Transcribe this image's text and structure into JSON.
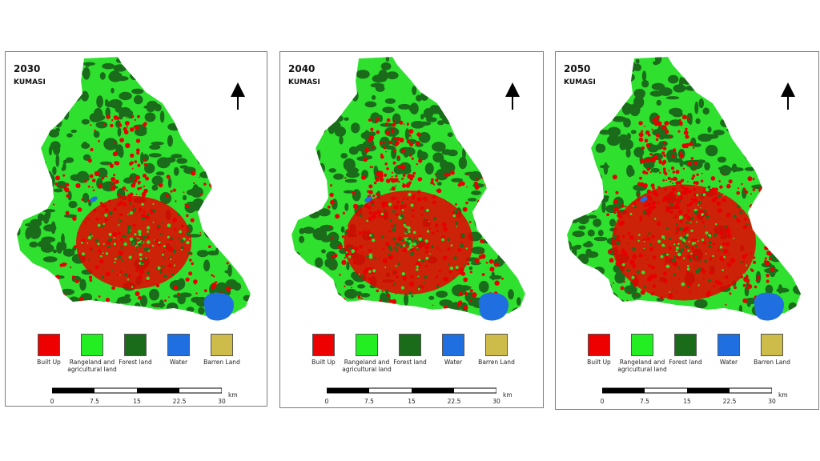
{
  "panels": [
    {
      "year": "2030",
      "city": "KUMASI"
    },
    {
      "year": "2040",
      "city": "KUMASI"
    },
    {
      "year": "2050",
      "city": "KUMASI"
    }
  ],
  "legend": [
    {
      "label": "Built Up",
      "color": "#ee0000"
    },
    {
      "label": "Rangeland and agricultural land",
      "color": "#22ee22"
    },
    {
      "label": "Forest land",
      "color": "#1a6b1a"
    },
    {
      "label": "Water",
      "color": "#1f6fe0"
    },
    {
      "label": "Barren Land",
      "color": "#cdbb4a"
    }
  ],
  "scale": {
    "ticks": [
      "0",
      "7.5",
      "15",
      "22.5",
      "30"
    ],
    "unit": "km"
  },
  "colors": {
    "built": "#e80000",
    "range": "#2fe02f",
    "forest": "#1a6b1a",
    "water": "#1f6fe0",
    "border": "#7d7d7d"
  }
}
